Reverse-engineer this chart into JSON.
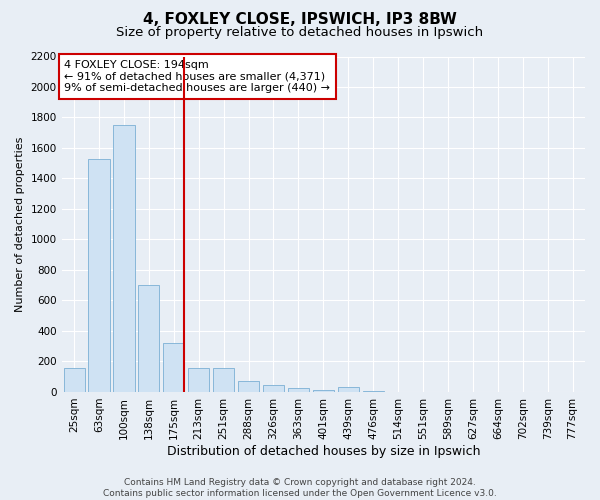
{
  "title1": "4, FOXLEY CLOSE, IPSWICH, IP3 8BW",
  "title2": "Size of property relative to detached houses in Ipswich",
  "xlabel": "Distribution of detached houses by size in Ipswich",
  "ylabel": "Number of detached properties",
  "categories": [
    "25sqm",
    "63sqm",
    "100sqm",
    "138sqm",
    "175sqm",
    "213sqm",
    "251sqm",
    "288sqm",
    "326sqm",
    "363sqm",
    "401sqm",
    "439sqm",
    "476sqm",
    "514sqm",
    "551sqm",
    "589sqm",
    "627sqm",
    "664sqm",
    "702sqm",
    "739sqm",
    "777sqm"
  ],
  "values": [
    155,
    1530,
    1750,
    700,
    320,
    160,
    160,
    75,
    45,
    25,
    15,
    30,
    5,
    0,
    0,
    0,
    0,
    0,
    0,
    0,
    0
  ],
  "bar_color": "#cfe2f3",
  "bar_edge_color": "#7bafd4",
  "vline_color": "#cc0000",
  "annotation_text": "4 FOXLEY CLOSE: 194sqm\n← 91% of detached houses are smaller (4,371)\n9% of semi-detached houses are larger (440) →",
  "annotation_box_color": "#ffffff",
  "annotation_box_edge": "#cc0000",
  "ylim": [
    0,
    2200
  ],
  "yticks": [
    0,
    200,
    400,
    600,
    800,
    1000,
    1200,
    1400,
    1600,
    1800,
    2000,
    2200
  ],
  "background_color": "#e8eef5",
  "footer_text": "Contains HM Land Registry data © Crown copyright and database right 2024.\nContains public sector information licensed under the Open Government Licence v3.0.",
  "title1_fontsize": 11,
  "title2_fontsize": 9.5,
  "xlabel_fontsize": 9,
  "ylabel_fontsize": 8,
  "tick_fontsize": 7.5,
  "annotation_fontsize": 8,
  "footer_fontsize": 6.5
}
